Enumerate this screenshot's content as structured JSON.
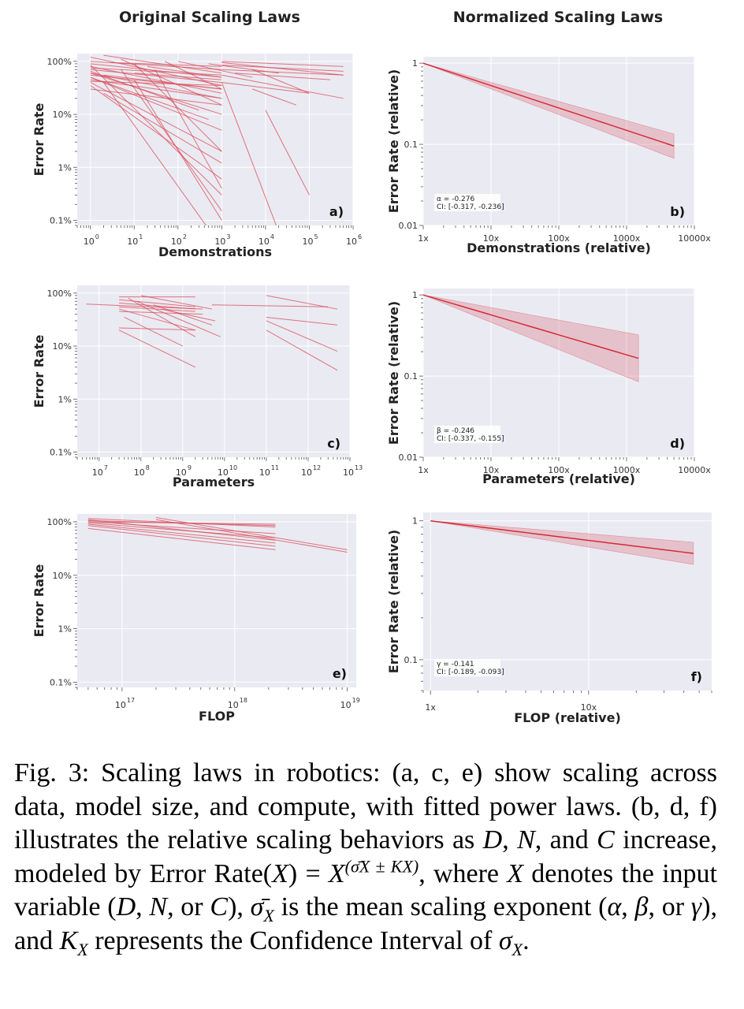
{
  "figure": {
    "col_titles": [
      "Original Scaling Laws",
      "Normalized Scaling Laws"
    ]
  },
  "chart_data": [
    {
      "id": "a",
      "type": "line",
      "panel_letter": "a)",
      "xlabel": "Demonstrations",
      "ylabel": "Error Rate",
      "xscale": "log",
      "yscale": "log",
      "xlim": [
        0.5,
        1000000
      ],
      "ylim": [
        0.0008,
        1.4
      ],
      "x_ticks": [
        {
          "base": "10",
          "exp": "0"
        },
        {
          "base": "10",
          "exp": "1"
        },
        {
          "base": "10",
          "exp": "2"
        },
        {
          "base": "10",
          "exp": "3"
        },
        {
          "base": "10",
          "exp": "4"
        },
        {
          "base": "10",
          "exp": "5"
        },
        {
          "base": "10",
          "exp": "6"
        }
      ],
      "y_ticks": [
        "100%",
        "10%",
        "1%",
        "0.1%"
      ],
      "color": "#d94a56",
      "series_note": "individual fitted power laws, [x_start, x_end, err_start, err_end]",
      "lines": [
        [
          1,
          1000,
          1.2,
          0.35
        ],
        [
          1,
          1000,
          0.9,
          0.5
        ],
        [
          1,
          1000,
          0.8,
          0.25
        ],
        [
          1,
          1000,
          0.7,
          0.4
        ],
        [
          1,
          1000,
          0.6,
          0.1
        ],
        [
          1,
          1000,
          0.55,
          0.3
        ],
        [
          1,
          1000,
          0.5,
          0.05
        ],
        [
          1,
          1000,
          0.45,
          0.2
        ],
        [
          1,
          1000,
          0.4,
          0.02
        ],
        [
          1,
          1000,
          0.35,
          0.006
        ],
        [
          1,
          1000,
          0.3,
          0.15
        ],
        [
          1,
          1000,
          0.6,
          0.2
        ],
        [
          1,
          1000,
          1.0,
          0.7
        ],
        [
          2,
          1000,
          1.3,
          0.6
        ],
        [
          1,
          500,
          0.5,
          0.08
        ],
        [
          2,
          1000,
          0.25,
          0.012
        ],
        [
          1,
          1000,
          0.85,
          0.003
        ],
        [
          5,
          1000,
          1.1,
          0.15
        ],
        [
          5,
          1000,
          0.7,
          0.0015
        ],
        [
          2,
          800,
          0.4,
          0.0004
        ],
        [
          10,
          1000,
          0.9,
          0.02
        ],
        [
          10,
          1000,
          0.6,
          0.45
        ],
        [
          1,
          1000,
          0.75,
          0.55
        ],
        [
          20,
          1000,
          0.8,
          0.5
        ],
        [
          50,
          1000,
          1.0,
          0.3
        ],
        [
          3,
          1000,
          0.95,
          0.8
        ],
        [
          1,
          300,
          0.65,
          0.12
        ],
        [
          10,
          1000,
          0.45,
          0.001
        ],
        [
          1,
          1000,
          0.42,
          0.35
        ],
        [
          30,
          1000,
          0.7,
          0.004
        ],
        [
          2,
          1000,
          0.55,
          0.3
        ],
        [
          100,
          5000,
          1.0,
          0.5
        ],
        [
          500,
          20000,
          0.9,
          0.6
        ],
        [
          1000,
          600000,
          1.0,
          0.8
        ],
        [
          1000,
          600000,
          0.95,
          0.55
        ],
        [
          1000,
          600000,
          0.85,
          0.65
        ],
        [
          1000,
          600000,
          0.7,
          0.55
        ],
        [
          1000,
          600000,
          0.55,
          0.2
        ],
        [
          2000,
          300000,
          0.6,
          0.45
        ],
        [
          1000,
          100000,
          0.4,
          0.25
        ],
        [
          5000,
          50000,
          0.3,
          0.15
        ],
        [
          10000,
          100000,
          0.12,
          0.003
        ],
        [
          1000,
          20000,
          0.4,
          0.0006
        ],
        [
          5000,
          100000,
          0.7,
          0.25
        ]
      ]
    },
    {
      "id": "b",
      "type": "line",
      "panel_letter": "b)",
      "xlabel": "Demonstrations (relative)",
      "ylabel": "Error Rate (relative)",
      "xscale": "log",
      "yscale": "log",
      "xlim": [
        1,
        10000
      ],
      "ylim": [
        0.01,
        1.2
      ],
      "x_ticks": [
        "1x",
        "10x",
        "100x",
        "1000x",
        "10000x"
      ],
      "y_ticks": [
        "1",
        "0.1",
        "0.01"
      ],
      "exponent_label": "α = -0.276",
      "ci_label": "CI: [-0.317, -0.236]",
      "alpha": -0.276,
      "ci": [
        -0.317,
        -0.236
      ],
      "x_max": 5000,
      "color": "#d94a56"
    },
    {
      "id": "c",
      "type": "line",
      "panel_letter": "c)",
      "xlabel": "Parameters",
      "ylabel": "Error Rate",
      "xscale": "log",
      "yscale": "log",
      "xlim": [
        3000000,
        10000000000000
      ],
      "ylim": [
        0.0008,
        1.4
      ],
      "x_ticks": [
        {
          "base": "10",
          "exp": "7"
        },
        {
          "base": "10",
          "exp": "8"
        },
        {
          "base": "10",
          "exp": "9"
        },
        {
          "base": "10",
          "exp": "10"
        },
        {
          "base": "10",
          "exp": "11"
        },
        {
          "base": "10",
          "exp": "12"
        },
        {
          "base": "10",
          "exp": "13"
        }
      ],
      "y_ticks": [
        "100%",
        "10%",
        "1%",
        "0.1%"
      ],
      "color": "#d94a56",
      "series_note": "individual fitted power laws, [x_start, x_end, err_start, err_end]",
      "lines": [
        [
          5000000,
          3000000000,
          0.62,
          0.5
        ],
        [
          30000000,
          2000000000,
          0.85,
          0.85
        ],
        [
          30000000,
          2000000000,
          0.75,
          0.55
        ],
        [
          30000000,
          2000000000,
          0.65,
          0.5
        ],
        [
          30000000,
          2000000000,
          0.55,
          0.45
        ],
        [
          30000000,
          2000000000,
          0.5,
          0.2
        ],
        [
          30000000,
          2000000000,
          0.22,
          0.2
        ],
        [
          30000000,
          2000000000,
          0.2,
          0.04
        ],
        [
          50000000,
          2000000000,
          0.8,
          0.15
        ],
        [
          100000000,
          5000000000,
          0.9,
          0.5
        ],
        [
          80000000,
          8000000000,
          0.7,
          0.15
        ],
        [
          200000000,
          5000000000,
          0.6,
          0.25
        ],
        [
          30000000,
          3000000000,
          0.45,
          0.4
        ],
        [
          40000000,
          1000000000,
          0.35,
          0.1
        ],
        [
          300000000,
          6000000000,
          0.5,
          0.3
        ],
        [
          5000000000,
          3000000000000,
          0.6,
          0.55
        ],
        [
          100000000000,
          5000000000000,
          0.9,
          0.5
        ],
        [
          100000000000,
          5000000000000,
          0.35,
          0.25
        ],
        [
          100000000000,
          5000000000000,
          0.3,
          0.08
        ],
        [
          100000000000,
          5000000000000,
          0.2,
          0.035
        ]
      ]
    },
    {
      "id": "d",
      "type": "line",
      "panel_letter": "d)",
      "xlabel": "Parameters (relative)",
      "ylabel": "Error Rate (relative)",
      "xscale": "log",
      "yscale": "log",
      "xlim": [
        1,
        10000
      ],
      "ylim": [
        0.01,
        1.2
      ],
      "x_ticks": [
        "1x",
        "10x",
        "100x",
        "1000x",
        "10000x"
      ],
      "y_ticks": [
        "1",
        "0.1",
        "0.01"
      ],
      "exponent_label": "β = -0.246",
      "ci_label": "CI: [-0.337, -0.155]",
      "alpha": -0.246,
      "ci": [
        -0.337,
        -0.155
      ],
      "x_max": 1500,
      "color": "#d94a56"
    },
    {
      "id": "e",
      "type": "line",
      "panel_letter": "e)",
      "xlabel": "FLOP",
      "ylabel": "Error Rate",
      "xscale": "log",
      "yscale": "log",
      "xlim": [
        40000000000000000,
        12000000000000000000
      ],
      "ylim": [
        0.0008,
        1.4
      ],
      "x_ticks": [
        {
          "base": "10",
          "exp": "17"
        },
        {
          "base": "10",
          "exp": "18"
        },
        {
          "base": "10",
          "exp": "19"
        }
      ],
      "y_ticks": [
        "100%",
        "10%",
        "1%",
        "0.1%"
      ],
      "color": "#d94a56",
      "series_note": "individual fitted power laws, [x_start, x_end, err_start, err_end]",
      "lines": [
        [
          50000000000000000,
          2300000000000000000,
          1.15,
          0.8
        ],
        [
          50000000000000000,
          2300000000000000000,
          1.05,
          0.85
        ],
        [
          50000000000000000,
          2300000000000000000,
          1.0,
          0.6
        ],
        [
          50000000000000000,
          2300000000000000000,
          0.95,
          0.5
        ],
        [
          50000000000000000,
          2300000000000000000,
          0.9,
          0.4
        ],
        [
          50000000000000000,
          2300000000000000000,
          0.85,
          0.35
        ],
        [
          50000000000000000,
          2300000000000000000,
          0.75,
          0.3
        ],
        [
          50000000000000000,
          2300000000000000000,
          1.1,
          0.45
        ],
        [
          50000000000000000,
          2300000000000000000,
          1.0,
          0.9
        ],
        [
          200000000000000000,
          10000000000000000000,
          1.2,
          0.3
        ],
        [
          200000000000000000,
          10000000000000000000,
          1.1,
          0.27
        ]
      ]
    },
    {
      "id": "f",
      "type": "line",
      "panel_letter": "f)",
      "xlabel": "FLOP (relative)",
      "ylabel": "Error Rate (relative)",
      "xscale": "log",
      "yscale": "log",
      "xlim": [
        0.9,
        60
      ],
      "ylim": [
        0.06,
        1.15
      ],
      "x_ticks": [
        "1x",
        "10x"
      ],
      "y_ticks": [
        "1",
        "0.1"
      ],
      "exponent_label": "γ = -0.141",
      "ci_label": "CI: [-0.189, -0.093]",
      "alpha": -0.141,
      "ci": [
        -0.189,
        -0.093
      ],
      "x_max": 46,
      "color": "#d94a56"
    }
  ],
  "caption": {
    "p1": "Fig. 3: Scaling laws in robotics: (a, c, e) show scaling across data, model size, and compute, with fitted power laws. (b, d, f) illustrates the relative scaling behaviors as ",
    "D": "D",
    "c1": ", ",
    "N": "N",
    "c2": ", and ",
    "C": "C",
    "p2": " increase, modeled by Error Rate(",
    "X1": "X",
    "p3": ") = ",
    "X2": "X",
    "exp": "(σ̄X ± KX)",
    "p4": ", where ",
    "X3": "X",
    "p5": " denotes the input variable (",
    "D2": "D",
    "c3": ", ",
    "N2": "N",
    "c4": ", or ",
    "C2": "C",
    "p6": "), ",
    "sigbar": "σ̄",
    "X4": "X",
    "p7": " is the mean scaling exponent (",
    "alpha": "α",
    "c5": ", ",
    "beta": "β",
    "c6": ", or ",
    "gamma": "γ",
    "p8": "), and ",
    "K": "K",
    "X5": "X",
    "p9": " represents the Confidence Interval of ",
    "sigma": "σ",
    "X6": "X",
    "p10": "."
  }
}
